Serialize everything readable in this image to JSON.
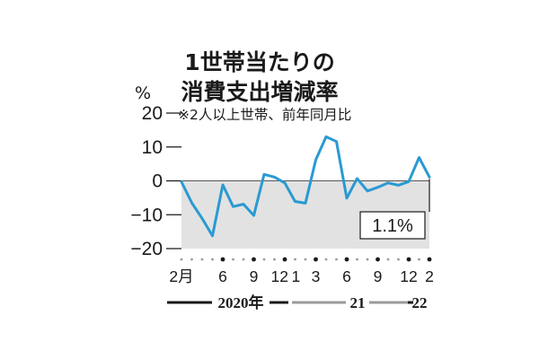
{
  "chart_data": {
    "type": "line",
    "title": "1世帯当たりの",
    "subtitle": "消費支出増減率",
    "note": "※2人以上世帯、前年同月比",
    "ylabel": "%",
    "ylim": [
      -20,
      20
    ],
    "yticks": [
      20,
      10,
      0,
      -10,
      -20
    ],
    "x": [
      "2020-02",
      "2020-03",
      "2020-04",
      "2020-05",
      "2020-06",
      "2020-07",
      "2020-08",
      "2020-09",
      "2020-10",
      "2020-11",
      "2020-12",
      "2021-01",
      "2021-02",
      "2021-03",
      "2021-04",
      "2021-05",
      "2021-06",
      "2021-07",
      "2021-08",
      "2021-09",
      "2021-10",
      "2021-11",
      "2021-12",
      "2022-01",
      "2022-02"
    ],
    "values": [
      -0.3,
      -6.5,
      -11.1,
      -16.2,
      -1.2,
      -7.6,
      -6.9,
      -10.2,
      1.9,
      1.1,
      -0.6,
      -6.1,
      -6.6,
      6.2,
      13.0,
      11.6,
      -5.1,
      0.7,
      -3.0,
      -1.9,
      -0.6,
      -1.3,
      -0.2,
      6.9,
      1.1
    ],
    "xtick_labels": [
      {
        "index": 0,
        "label": "2月"
      },
      {
        "index": 4,
        "label": "6"
      },
      {
        "index": 7,
        "label": "9"
      },
      {
        "index": 10,
        "label": "12"
      },
      {
        "index": 11,
        "label": "1"
      },
      {
        "index": 13,
        "label": "3"
      },
      {
        "index": 16,
        "label": "6"
      },
      {
        "index": 19,
        "label": "9"
      },
      {
        "index": 22,
        "label": "12"
      },
      {
        "index": 24,
        "label": "2"
      }
    ],
    "major_tick_indices": [
      4,
      7,
      10,
      13,
      16,
      19,
      22,
      24
    ],
    "years": [
      {
        "label": "2020年",
        "start": 0,
        "end": 10
      },
      {
        "label": "21",
        "start": 11,
        "end": 22
      },
      {
        "label": "22",
        "start": 23,
        "end": 24
      }
    ],
    "annotation": {
      "index": 24,
      "text": "1.1%"
    },
    "colors": {
      "line": "#2a9ad2",
      "negative_area": "#e2e2e2",
      "text": "#1a1a1a",
      "year_2020": "#1a1a1a",
      "year_2021": "#9a9a9a",
      "year_2022": "#1a1a1a",
      "minor_dot": "#9a9a9a"
    }
  }
}
